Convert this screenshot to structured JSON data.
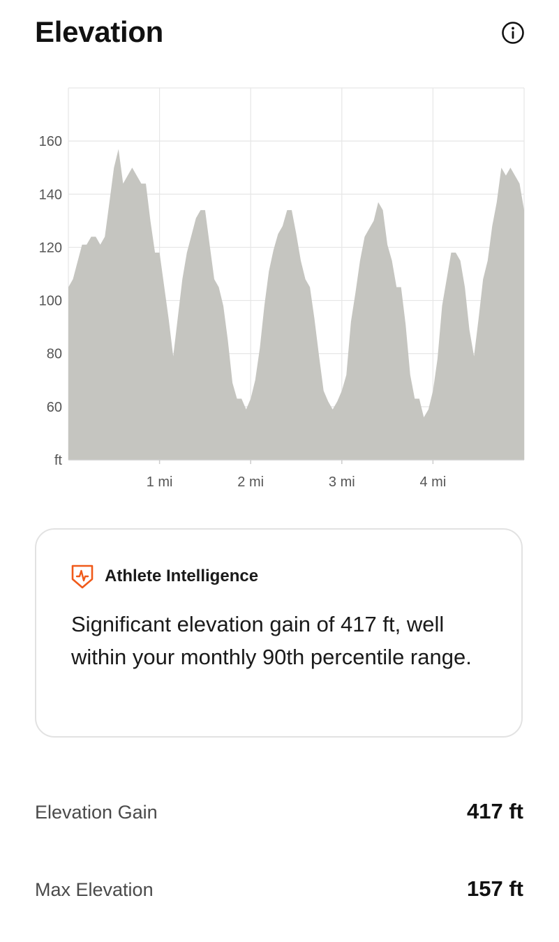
{
  "header": {
    "title": "Elevation",
    "info_icon": "info-circle-icon"
  },
  "chart_data": {
    "type": "area",
    "y_unit_label": "ft",
    "x_tick_labels": [
      {
        "x": 1,
        "label": "1 mi"
      },
      {
        "x": 2,
        "label": "2 mi"
      },
      {
        "x": 3,
        "label": "3 mi"
      },
      {
        "x": 4,
        "label": "4 mi"
      }
    ],
    "y_ticks": [
      60,
      80,
      100,
      120,
      140,
      160
    ],
    "xlim": [
      0,
      5
    ],
    "ylim": [
      40,
      180
    ],
    "grid": true,
    "fill_color": "#c5c5c0",
    "grid_color": "#e6e6e6",
    "axis_color": "#cccccc",
    "series": [
      {
        "x": [
          0.0,
          0.05,
          0.15,
          0.2,
          0.25,
          0.3,
          0.35,
          0.4,
          0.45,
          0.5,
          0.55,
          0.6,
          0.7,
          0.75,
          0.8,
          0.85,
          0.9,
          0.95,
          1.0,
          1.1,
          1.15,
          1.25,
          1.3,
          1.4,
          1.45,
          1.5,
          1.55,
          1.6,
          1.65,
          1.7,
          1.75,
          1.8,
          1.85,
          1.9,
          1.95,
          2.0,
          2.05,
          2.1,
          2.15,
          2.2,
          2.25,
          2.3,
          2.35,
          2.4,
          2.45,
          2.5,
          2.55,
          2.6,
          2.65,
          2.7,
          2.75,
          2.8,
          2.85,
          2.9,
          2.95,
          3.0,
          3.05,
          3.1,
          3.15,
          3.2,
          3.25,
          3.3,
          3.35,
          3.4,
          3.45,
          3.5,
          3.55,
          3.6,
          3.65,
          3.7,
          3.75,
          3.8,
          3.85,
          3.9,
          3.95,
          4.0,
          4.05,
          4.1,
          4.15,
          4.2,
          4.25,
          4.3,
          4.35,
          4.4,
          4.45,
          4.5,
          4.55,
          4.6,
          4.65,
          4.7,
          4.75,
          4.8,
          4.85,
          4.9,
          4.95,
          5.0
        ],
        "y": [
          105,
          108,
          121,
          121,
          124,
          124,
          121,
          124,
          137,
          150,
          157,
          144,
          150,
          147,
          144,
          144,
          130,
          118,
          118,
          93,
          79,
          108,
          118,
          131,
          134,
          134,
          121,
          108,
          105,
          98,
          85,
          69,
          63,
          63,
          59,
          63,
          70,
          82,
          98,
          111,
          119,
          125,
          128,
          134,
          134,
          125,
          115,
          108,
          105,
          93,
          79,
          66,
          62,
          59,
          62,
          66,
          72,
          92,
          103,
          115,
          124,
          127,
          130,
          137,
          134,
          121,
          115,
          105,
          105,
          91,
          72,
          63,
          63,
          56,
          59,
          66,
          78,
          98,
          108,
          118,
          118,
          115,
          105,
          89,
          79,
          93,
          108,
          115,
          128,
          137,
          150,
          147,
          150,
          147,
          144,
          134
        ]
      }
    ]
  },
  "insight": {
    "icon": "athlete-intelligence-shield-icon",
    "icon_color": "#f05a1a",
    "title": "Athlete Intelligence",
    "text": "Significant elevation gain of 417 ft, well within your monthly 90th percentile range."
  },
  "stats": [
    {
      "label": "Elevation Gain",
      "value": "417 ft"
    },
    {
      "label": "Max Elevation",
      "value": "157 ft"
    }
  ]
}
